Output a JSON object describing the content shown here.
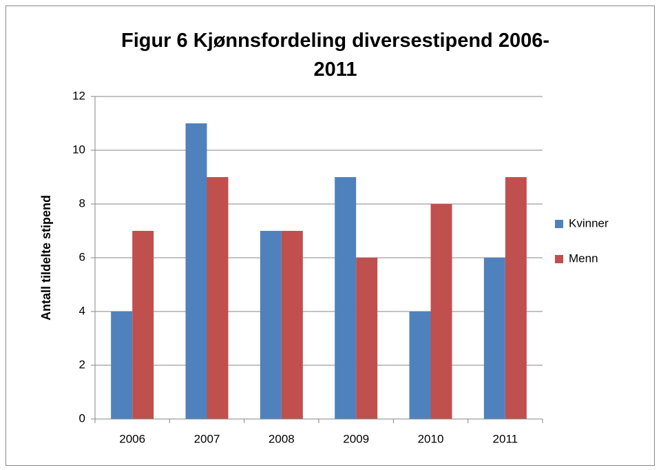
{
  "chart_data": {
    "type": "bar",
    "title": "Figur 6 Kjønnsfordeling diversestipend 2006-2011",
    "y_label": "Antall tildelte stipend",
    "categories": [
      "2006",
      "2007",
      "2008",
      "2009",
      "2010",
      "2011"
    ],
    "series": [
      {
        "name": "Kvinner",
        "color": "#4f81bd",
        "values": [
          4,
          11,
          7,
          9,
          4,
          6
        ]
      },
      {
        "name": "Menn",
        "color": "#c0504d",
        "values": [
          7,
          9,
          7,
          6,
          8,
          9
        ]
      }
    ],
    "ylim": [
      0,
      12
    ],
    "yticks": [
      0,
      2,
      4,
      6,
      8,
      10,
      12
    ],
    "grid": true,
    "legend": "right"
  }
}
